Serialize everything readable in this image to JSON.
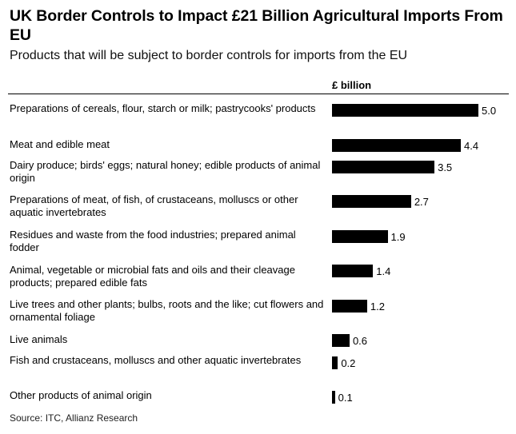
{
  "title": "UK Border Controls to Impact £21 Billion Agricultural Imports From EU",
  "subtitle": "Products that will be subject to border controls for imports from the EU",
  "unit_label": "£ billion",
  "source": "Source: ITC, Allianz Research",
  "chart_data": {
    "type": "bar",
    "orientation": "horizontal",
    "title": "UK Border Controls to Impact £21 Billion Agricultural Imports From EU",
    "subtitle": "Products that will be subject to border controls for imports from the EU",
    "xlabel": "£ billion",
    "ylabel": "",
    "grid": false,
    "categories": [
      "Preparations of cereals, flour, starch or milk; pastrycooks' products",
      "Meat and edible meat",
      "Dairy produce; birds' eggs; natural honey; edible products of animal origin",
      "Preparations of meat, of fish, of crustaceans, molluscs or other aquatic invertebrates",
      "Residues and waste from the food industries; prepared animal fodder",
      "Animal, vegetable or microbial fats and oils and their cleavage products; prepared edible fats",
      "Live trees and other plants; bulbs, roots and the like; cut flowers and ornamental foliage",
      "Live animals",
      "Fish and crustaceans, molluscs and other aquatic invertebrates",
      "Other products of animal origin"
    ],
    "values": [
      5.0,
      4.4,
      3.5,
      2.7,
      1.9,
      1.4,
      1.2,
      0.6,
      0.2,
      0.1
    ],
    "value_labels": [
      "5.0",
      "4.4",
      "3.5",
      "2.7",
      "1.9",
      "1.4",
      "1.2",
      "0.6",
      "0.2",
      "0.1"
    ],
    "xlim": [
      0,
      5.0
    ],
    "bar_color": "#000000"
  }
}
